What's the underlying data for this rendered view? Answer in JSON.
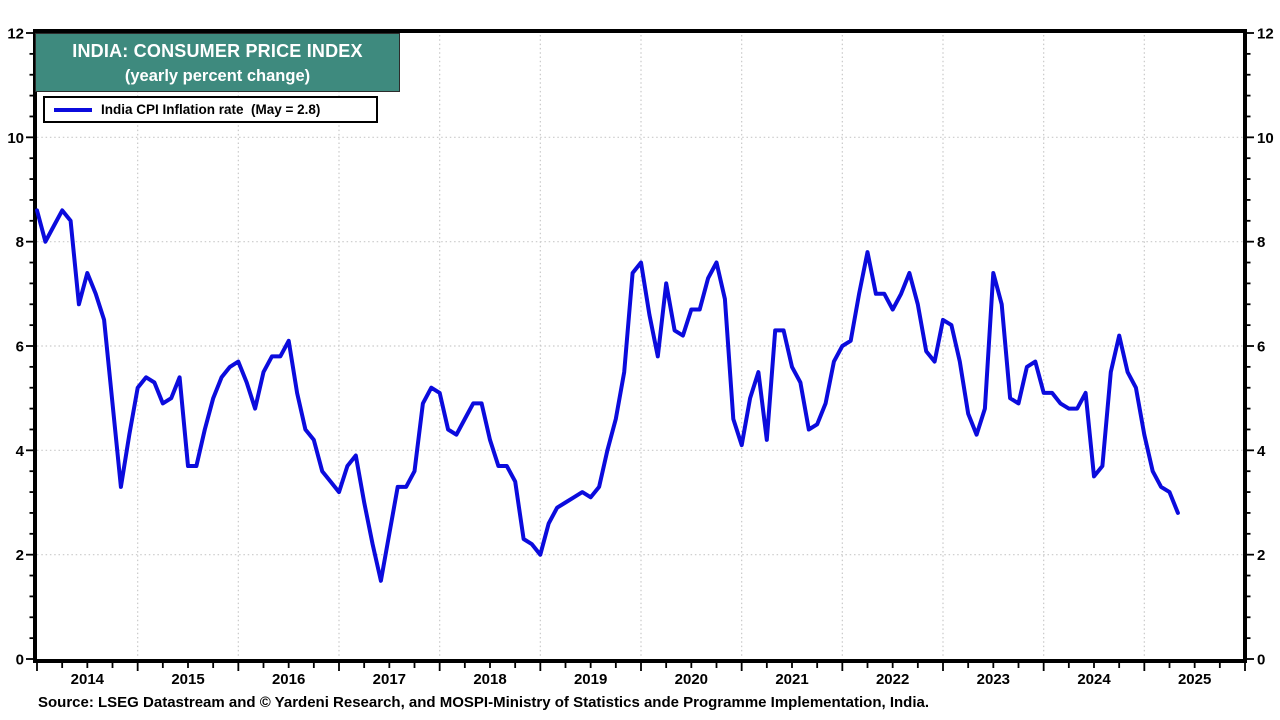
{
  "title": {
    "line1": "INDIA: CONSUMER PRICE INDEX",
    "line2": "(yearly percent change)"
  },
  "legend": {
    "label": "India CPI Inflation rate  (May = 2.8)"
  },
  "source": "Source: LSEG Datastream and © Yardeni Research, and MOSPI-Ministry of Statistics ande Programme Implementation, India.",
  "colors": {
    "line": "#0b0bdd",
    "title_bg": "#3e8a7e",
    "title_text": "#ffffff",
    "grid": "#c9c9c9",
    "axis": "#000000"
  },
  "chart_data": {
    "type": "line",
    "title": "INDIA: CONSUMER PRICE INDEX (yearly percent change)",
    "xlabel": "",
    "ylabel": "",
    "x_start": "2014-01",
    "x_end": "2025-05",
    "x_axis_end": "2026-01",
    "x_total_months": 144,
    "ylim": [
      0,
      12
    ],
    "y_ticks": [
      0,
      2,
      4,
      6,
      8,
      10,
      12
    ],
    "y_minor_step": 0.4,
    "x_minor_step_months": 3,
    "x_tick_labels": [
      "2014",
      "2015",
      "2016",
      "2017",
      "2018",
      "2019",
      "2020",
      "2021",
      "2022",
      "2023",
      "2024",
      "2025"
    ],
    "grid": true,
    "legend_position": "top-left",
    "series": [
      {
        "name": "India CPI Inflation rate",
        "latest_label": "May = 2.8",
        "frequency": "monthly",
        "values": [
          8.6,
          8.0,
          8.3,
          8.6,
          8.4,
          6.8,
          7.4,
          7.0,
          6.5,
          4.9,
          3.3,
          4.3,
          5.2,
          5.4,
          5.3,
          4.9,
          5.0,
          5.4,
          3.7,
          3.7,
          4.4,
          5.0,
          5.4,
          5.6,
          5.7,
          5.3,
          4.8,
          5.5,
          5.8,
          5.8,
          6.1,
          5.1,
          4.4,
          4.2,
          3.6,
          3.4,
          3.2,
          3.7,
          3.9,
          3.0,
          2.2,
          1.5,
          2.4,
          3.3,
          3.3,
          3.6,
          4.9,
          5.2,
          5.1,
          4.4,
          4.3,
          4.6,
          4.9,
          4.9,
          4.2,
          3.7,
          3.7,
          3.4,
          2.3,
          2.2,
          2.0,
          2.6,
          2.9,
          3.0,
          3.1,
          3.2,
          3.1,
          3.3,
          4.0,
          4.6,
          5.5,
          7.4,
          7.6,
          6.6,
          5.8,
          7.2,
          6.3,
          6.2,
          6.7,
          6.7,
          7.3,
          7.6,
          6.9,
          4.6,
          4.1,
          5.0,
          5.5,
          4.2,
          6.3,
          6.3,
          5.6,
          5.3,
          4.4,
          4.5,
          4.9,
          5.7,
          6.0,
          6.1,
          7.0,
          7.8,
          7.0,
          7.0,
          6.7,
          7.0,
          7.4,
          6.8,
          5.9,
          5.7,
          6.5,
          6.4,
          5.7,
          4.7,
          4.3,
          4.8,
          7.4,
          6.8,
          5.0,
          4.9,
          5.6,
          5.7,
          5.1,
          5.1,
          4.9,
          4.8,
          4.8,
          5.1,
          3.5,
          3.7,
          5.5,
          6.2,
          5.5,
          5.2,
          4.3,
          3.6,
          3.3,
          3.2,
          2.8
        ]
      }
    ]
  }
}
